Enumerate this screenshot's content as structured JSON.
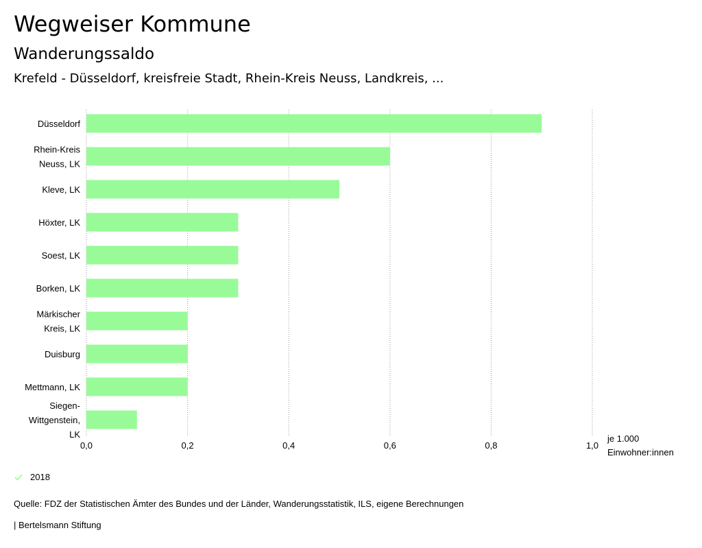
{
  "header": {
    "title": "Wegweiser Kommune",
    "subtitle": "Wanderungssaldo",
    "region": "Krefeld - Düsseldorf, kreisfreie Stadt, Rhein-Kreis Neuss, Landkreis, ..."
  },
  "chart_data": {
    "type": "bar",
    "orientation": "horizontal",
    "categories": [
      [
        "Düsseldorf"
      ],
      [
        "Rhein-Kreis",
        "Neuss, LK"
      ],
      [
        "Kleve, LK"
      ],
      [
        "Höxter, LK"
      ],
      [
        "Soest, LK"
      ],
      [
        "Borken, LK"
      ],
      [
        "Märkischer",
        "Kreis, LK"
      ],
      [
        "Duisburg"
      ],
      [
        "Mettmann, LK"
      ],
      [
        "Siegen-",
        "Wittgenstein,",
        "LK"
      ]
    ],
    "series": [
      {
        "name": "2018",
        "values": [
          0.9,
          0.6,
          0.5,
          0.3,
          0.3,
          0.3,
          0.2,
          0.2,
          0.2,
          0.1
        ]
      }
    ],
    "xlim": [
      0,
      1.0
    ],
    "xticks": [
      0.0,
      0.2,
      0.4,
      0.6,
      0.8,
      1.0
    ],
    "xtick_labels": [
      "0,0",
      "0,2",
      "0,4",
      "0,6",
      "0,8",
      "1,0"
    ],
    "grid": true,
    "bar_color": "#98fb98",
    "grid_color": "#999999"
  },
  "unit": {
    "line1": "je 1.000",
    "line2": "Einwohner:innen"
  },
  "legend": {
    "label": "2018",
    "icon": "check-icon",
    "color": "#98fb98"
  },
  "footer": {
    "source": "Quelle: FDZ der Statistischen Ämter des Bundes und der Länder, Wanderungsstatistik, ILS, eigene Berechnungen",
    "credit": "| Bertelsmann Stiftung"
  }
}
